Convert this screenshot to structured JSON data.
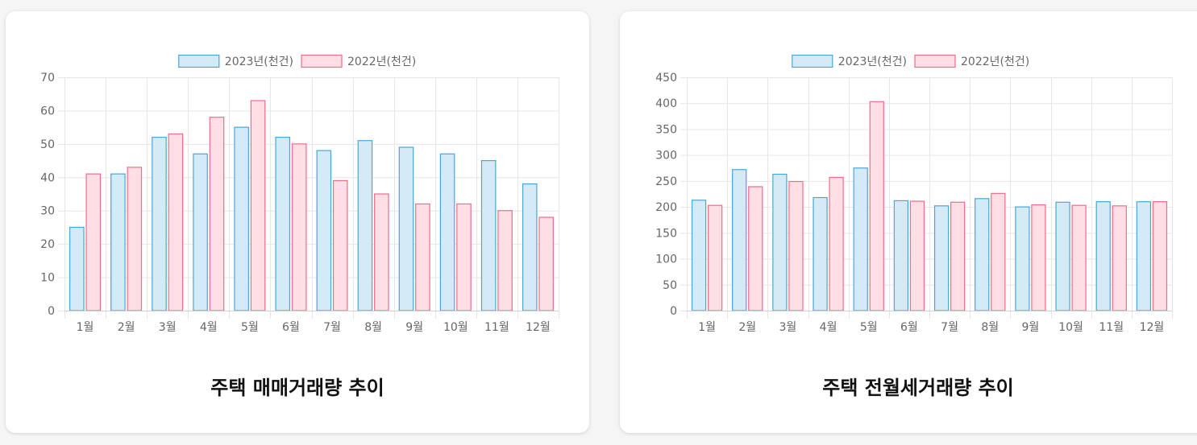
{
  "colors": {
    "series_2023_fill": "#d4ebf7",
    "series_2023_stroke": "#4aa6d8",
    "series_2022_fill": "#ffdfe5",
    "series_2022_stroke": "#ef6c8a",
    "grid": "#e6e6e6",
    "card_bg": "#ffffff",
    "page_bg": "#f5f5f5"
  },
  "chart_data": [
    {
      "type": "bar",
      "title": "주택 매매거래량 추이",
      "categories": [
        "1월",
        "2월",
        "3월",
        "4월",
        "5월",
        "6월",
        "7월",
        "8월",
        "9월",
        "10월",
        "11월",
        "12월"
      ],
      "series": [
        {
          "name": "2023년(천건)",
          "values": [
            25,
            41,
            52,
            47,
            55,
            52,
            48,
            51,
            49,
            47,
            45,
            38
          ]
        },
        {
          "name": "2022년(천건)",
          "values": [
            41,
            43,
            53,
            58,
            63,
            50,
            39,
            35,
            32,
            32,
            30,
            28
          ]
        }
      ],
      "yticks": [
        0,
        10,
        20,
        30,
        40,
        50,
        60,
        70
      ],
      "ylim": [
        0,
        70
      ],
      "grid": true,
      "legend_position": "top"
    },
    {
      "type": "bar",
      "title": "주택 전월세거래량 추이",
      "categories": [
        "1월",
        "2월",
        "3월",
        "4월",
        "5월",
        "6월",
        "7월",
        "8월",
        "9월",
        "10월",
        "11월",
        "12월"
      ],
      "series": [
        {
          "name": "2023년(천건)",
          "values": [
            213,
            272,
            263,
            218,
            275,
            212,
            202,
            216,
            200,
            209,
            210,
            210
          ]
        },
        {
          "name": "2022년(천건)",
          "values": [
            203,
            239,
            249,
            257,
            403,
            211,
            209,
            226,
            204,
            203,
            202,
            210
          ]
        }
      ],
      "yticks": [
        0,
        50,
        100,
        150,
        200,
        250,
        300,
        350,
        400,
        450
      ],
      "ylim": [
        0,
        450
      ],
      "grid": true,
      "legend_position": "top"
    }
  ]
}
